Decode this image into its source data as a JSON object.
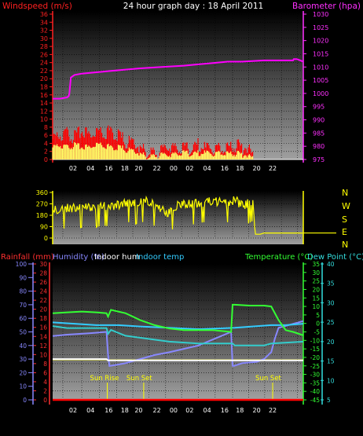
{
  "header": {
    "title": "24 hour graph day : 18 April 2011",
    "left_label": "Windspeed (m/s)",
    "right_label": "Barometer (hpa)"
  },
  "direction_labels": [
    "N",
    "W",
    "S",
    "E",
    "N"
  ],
  "bottom_labels": {
    "rainfall": "Rainfall (mm)",
    "humidity": "Humidity (%)",
    "indoor_hum": "Indoor hum",
    "indoor_temp": "Indoor temp",
    "temperature": "Temperature (°C)",
    "dew_point": "Dew Point (°C)"
  },
  "sun": {
    "rise_label": "Sun Rise",
    "set_label": "Sun Set"
  },
  "colors": {
    "windspeed": "#ff0000",
    "gust": "#ffff66",
    "barometer": "#ff00ff",
    "direction": "#ffff00",
    "rainfall": "#ff0000",
    "humidity": "#8888ff",
    "indoor_hum": "#ffffff",
    "indoor_temp": "#33ccff",
    "temperature": "#33ff33",
    "dew_point": "#33cccc",
    "yellow_line": "#ffff00"
  },
  "chart_data": [
    {
      "type": "line",
      "name": "wind-barometer",
      "x_ticks": [
        "02",
        "04",
        "16",
        "18",
        "20",
        "22",
        "00",
        "02",
        "04",
        "16",
        "18",
        "20",
        "22"
      ],
      "ylim_left": [
        0,
        36
      ],
      "yticks_left": [
        0,
        2,
        4,
        6,
        8,
        10,
        12,
        14,
        16,
        18,
        20,
        22,
        24,
        26,
        28,
        30,
        32,
        34,
        36
      ],
      "ylim_right": [
        975,
        1030
      ],
      "yticks_right": [
        975,
        980,
        985,
        990,
        995,
        1000,
        1005,
        1010,
        1015,
        1020,
        1025,
        1030
      ],
      "series": [
        {
          "name": "Barometer (hpa)",
          "axis": "right",
          "x": [
            0,
            10,
            20,
            22,
            23,
            25,
            30,
            40,
            60,
            80,
            100,
            120,
            150,
            180,
            200,
            220,
            240,
            260,
            290,
            300,
            330,
            331,
            335,
            340,
            344
          ],
          "values": [
            998,
            998,
            998.5,
            999,
            1000,
            1006,
            1007,
            1007.5,
            1008,
            1008.5,
            1009,
            1009.5,
            1010,
            1010.5,
            1011,
            1011.5,
            1012,
            1012,
            1012.5,
            1012.5,
            1012.5,
            1013,
            1013,
            1012.5,
            1012
          ]
        },
        {
          "name": "Windspeed (m/s)",
          "axis": "left",
          "x": [
            0,
            10,
            20,
            30,
            40,
            50,
            60,
            70,
            80,
            90,
            100,
            110,
            120,
            130,
            140,
            150,
            160,
            170,
            180,
            190,
            200,
            210,
            220,
            230,
            240,
            250,
            260,
            270,
            275,
            290,
            300,
            310,
            330,
            344
          ],
          "values": [
            5,
            6,
            6.5,
            5.5,
            7,
            6,
            7.5,
            6.5,
            7,
            6,
            4.5,
            4,
            3,
            1.5,
            1.5,
            2,
            3.5,
            3,
            2.5,
            3,
            3.5,
            2.5,
            3,
            2.5,
            3,
            3.5,
            3,
            3,
            0,
            0,
            0,
            0,
            0,
            0
          ]
        },
        {
          "name": "Gust",
          "axis": "left",
          "x": [
            0,
            10,
            20,
            30,
            40,
            50,
            60,
            70,
            80,
            90,
            100,
            110,
            120,
            130,
            150,
            170,
            190,
            210,
            230,
            250,
            270,
            275,
            344
          ],
          "values": [
            3,
            3.5,
            3,
            3.5,
            3,
            3,
            4,
            3.5,
            3,
            3,
            2.5,
            2,
            1.5,
            0.5,
            1,
            1.5,
            1.5,
            1.5,
            1.5,
            1.5,
            1,
            0,
            0
          ]
        }
      ]
    },
    {
      "type": "line",
      "name": "wind-direction",
      "ylim": [
        0,
        360
      ],
      "yticks": [
        0,
        90,
        180,
        270,
        360
      ],
      "series": [
        {
          "name": "Wind direction",
          "x": [
            0,
            15,
            30,
            45,
            60,
            70,
            80,
            100,
            115,
            130,
            150,
            160,
            170,
            180,
            190,
            200,
            210,
            220,
            235,
            250,
            262,
            275,
            278,
            285,
            290,
            300,
            320,
            344
          ],
          "values": [
            220,
            240,
            235,
            255,
            250,
            265,
            245,
            290,
            275,
            295,
            220,
            205,
            260,
            280,
            270,
            280,
            290,
            300,
            280,
            300,
            260,
            300,
            30,
            30,
            40,
            40,
            40,
            40
          ]
        }
      ]
    },
    {
      "type": "line",
      "name": "rain-humidity-temperature",
      "ylim_rain": [
        0,
        30
      ],
      "yticks_rain": [
        0,
        2,
        4,
        6,
        8,
        10,
        12,
        14,
        16,
        18,
        20,
        22,
        24,
        26,
        28,
        30
      ],
      "ylim_humidity": [
        0,
        100
      ],
      "yticks_humidity": [
        0,
        10,
        20,
        30,
        40,
        50,
        60,
        70,
        80,
        90,
        100
      ],
      "ylim_temperature": [
        -45,
        35
      ],
      "yticks_temperature": [
        -45,
        -40,
        -35,
        -30,
        -25,
        -20,
        -15,
        -10,
        -5,
        0,
        5,
        10,
        15,
        20,
        25,
        30,
        35
      ],
      "ylim_dewpoint": [
        5,
        40
      ],
      "yticks_dewpoint": [
        5,
        10,
        15,
        20,
        25,
        30,
        35,
        40
      ],
      "sun_events_x": [
        75,
        125,
        302
      ],
      "series": [
        {
          "name": "Humidity (%)",
          "axis": "humidity",
          "x": [
            0,
            20,
            50,
            74,
            76,
            78,
            90,
            100,
            120,
            140,
            160,
            200,
            245,
            247,
            249,
            260,
            280,
            290,
            300,
            305,
            310,
            344
          ],
          "values": [
            47,
            48,
            49,
            50,
            33,
            25,
            26,
            27,
            30,
            33,
            35,
            40,
            50,
            25,
            25,
            27,
            28,
            30,
            35,
            45,
            53,
            58
          ]
        },
        {
          "name": "Indoor hum",
          "axis": "humidity",
          "x": [
            0,
            74,
            76,
            344
          ],
          "values": [
            30,
            30,
            29,
            29
          ]
        },
        {
          "name": "Indoor temp",
          "axis": "humidity",
          "x": [
            0,
            30,
            60,
            90,
            120,
            160,
            200,
            250,
            300,
            320,
            344
          ],
          "values": [
            57,
            56,
            55,
            55,
            54,
            53,
            52,
            53,
            55,
            55,
            56
          ]
        },
        {
          "name": "Temperature (°C)",
          "axis": "temperature",
          "x": [
            0,
            20,
            40,
            60,
            74,
            76,
            80,
            90,
            100,
            110,
            120,
            140,
            160,
            180,
            200,
            220,
            245,
            247,
            250,
            270,
            290,
            300,
            310,
            320,
            330,
            344
          ],
          "values": [
            6,
            6.5,
            7,
            6.5,
            6,
            4,
            8,
            7,
            6,
            4,
            2,
            -1,
            -3,
            -4,
            -4,
            -4,
            -5,
            11,
            11,
            10.5,
            10.5,
            10,
            2,
            -4,
            -5,
            -7
          ]
        },
        {
          "name": "Dew Point (°C)",
          "axis": "dewpoint",
          "x": [
            0,
            20,
            40,
            60,
            74,
            76,
            80,
            100,
            120,
            140,
            160,
            200,
            245,
            247,
            250,
            270,
            290,
            300,
            344
          ],
          "values": [
            24,
            23.5,
            23.5,
            23.5,
            23.5,
            22,
            23,
            21.5,
            21,
            20.5,
            20,
            19.5,
            19.5,
            19.5,
            19,
            19,
            19,
            19.5,
            20
          ]
        },
        {
          "name": "Rainfall (mm)",
          "axis": "rain",
          "x": [
            0,
            344
          ],
          "values": [
            0,
            0
          ]
        }
      ]
    }
  ]
}
